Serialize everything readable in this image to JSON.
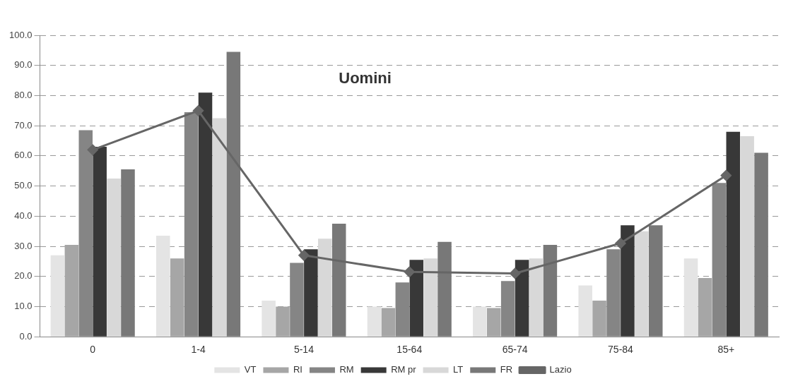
{
  "chart_data": {
    "type": "bar",
    "title": "Uomini",
    "categories": [
      "0",
      "1-4",
      "5-14",
      "15-64",
      "65-74",
      "75-84",
      "85+"
    ],
    "series": [
      {
        "name": "VT",
        "color": "#e4e4e4",
        "values": [
          27,
          33.5,
          12,
          10,
          10,
          17,
          26
        ]
      },
      {
        "name": "RI",
        "color": "#a6a6a6",
        "values": [
          30.5,
          26,
          10,
          9.5,
          9.5,
          12,
          19.5
        ]
      },
      {
        "name": "RM",
        "color": "#858585",
        "values": [
          68.5,
          74.5,
          24.5,
          18,
          18.5,
          29,
          51
        ]
      },
      {
        "name": "RM pr",
        "color": "#383838",
        "values": [
          63,
          81,
          29,
          25.5,
          25.5,
          37,
          68
        ]
      },
      {
        "name": "LT",
        "color": "#d8d8d8",
        "values": [
          52.5,
          72.5,
          32.5,
          26,
          26,
          35,
          66.5
        ]
      },
      {
        "name": "FR",
        "color": "#787878",
        "values": [
          55.5,
          94.5,
          37.5,
          31.5,
          30.5,
          37,
          61
        ]
      },
      {
        "name": "Lazio",
        "type": "line",
        "marker": "diamond",
        "color": "#666666",
        "values": [
          62,
          75,
          27,
          21.5,
          21,
          31,
          53.5
        ]
      }
    ],
    "ylim": [
      0,
      100
    ],
    "yticks": [
      {
        "value": 0,
        "label": "0.0"
      },
      {
        "value": 10,
        "label": "10.0"
      },
      {
        "value": 20,
        "label": "20.0"
      },
      {
        "value": 30,
        "label": "30.0"
      },
      {
        "value": 40,
        "label": "40.0"
      },
      {
        "value": 50,
        "label": "50.0"
      },
      {
        "value": 60,
        "label": "60.0"
      },
      {
        "value": 70,
        "label": "70.0"
      },
      {
        "value": 80,
        "label": "80.0"
      },
      {
        "value": 90,
        "label": "90.0"
      },
      {
        "value": 100,
        "label": "100.0"
      }
    ],
    "grid": "y",
    "legend": "bottom"
  }
}
